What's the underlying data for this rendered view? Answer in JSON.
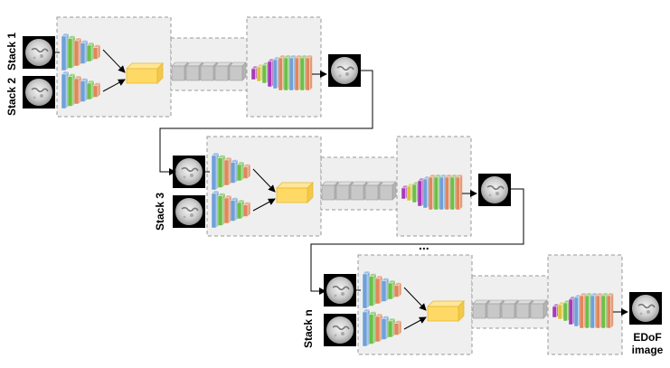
{
  "stage_labels": {
    "stack1": "Stack 1",
    "stack2": "Stack 2",
    "stack3": "Stack 3",
    "stackn": "Stack n"
  },
  "ellipsis": "...",
  "output_label": [
    "EDoF",
    "image"
  ],
  "colors": {
    "layer_blue": "#6fa0d8",
    "layer_green": "#6cbf4a",
    "layer_orange": "#e0875c",
    "layer_purple": "#a63bb8",
    "layer_yellow": "#d8c23a",
    "bottleneck_fill": "#ffd966",
    "bottleneck_stroke": "#e6b830",
    "grey_block": "#c8c8c8",
    "panel_fill": "#efefef",
    "panel_stroke": "#9a9a9a"
  },
  "icons": {
    "input_image": "moon-thumbnail",
    "bottleneck": "yellow-feature-block",
    "residual_chain": "grey-block-chain",
    "decoder": "multicolor-conv-layers"
  }
}
